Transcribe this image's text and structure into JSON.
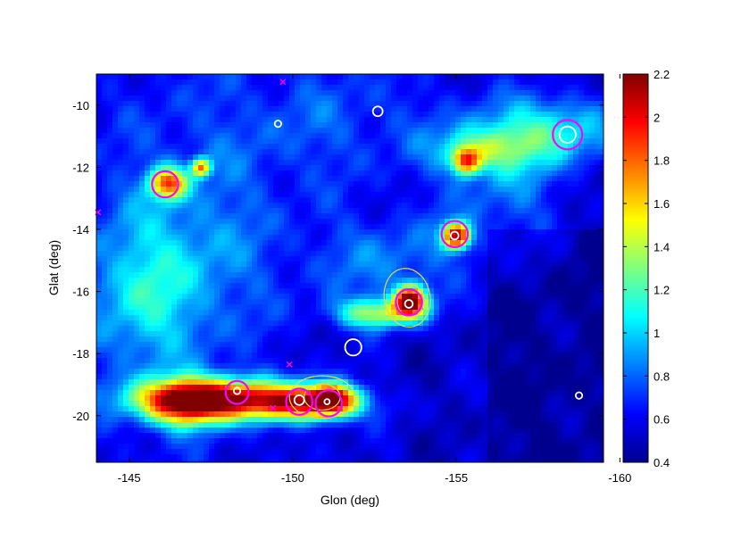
{
  "chart_data": {
    "type": "heatmap",
    "xlabel": "Glon (deg)",
    "ylabel": "Glat (deg)",
    "xlim": [
      -144,
      -159.5
    ],
    "ylim": [
      -21.5,
      -9
    ],
    "x_ticks": [
      {
        "value": -145,
        "label": "-145"
      },
      {
        "value": -150,
        "label": "-150"
      },
      {
        "value": -155,
        "label": "-155"
      },
      {
        "value": -160,
        "label": "-160"
      }
    ],
    "y_ticks": [
      {
        "value": -10,
        "label": "-10"
      },
      {
        "value": -12,
        "label": "-12"
      },
      {
        "value": -14,
        "label": "-14"
      },
      {
        "value": -16,
        "label": "-16"
      },
      {
        "value": -18,
        "label": "-18"
      },
      {
        "value": -20,
        "label": "-20"
      }
    ],
    "colorbar": {
      "range": [
        0.4,
        2.2
      ],
      "ticks": [
        {
          "value": 0.4,
          "label": "0.4"
        },
        {
          "value": 0.6,
          "label": "0.6"
        },
        {
          "value": 0.8,
          "label": "0.8"
        },
        {
          "value": 1.0,
          "label": "1"
        },
        {
          "value": 1.2,
          "label": "1.2"
        },
        {
          "value": 1.4,
          "label": "1.4"
        },
        {
          "value": 1.6,
          "label": "1.6"
        },
        {
          "value": 1.8,
          "label": "1.8"
        },
        {
          "value": 2.0,
          "label": "2"
        },
        {
          "value": 2.2,
          "label": "2.2"
        }
      ],
      "colormap": "jet"
    },
    "magenta_circles": [
      {
        "glon": -146.1,
        "glat": -12.55,
        "r": 0.4
      },
      {
        "glon": -148.3,
        "glat": -19.25,
        "r": 0.35
      },
      {
        "glon": -150.2,
        "glat": -19.55,
        "r": 0.4
      },
      {
        "glon": -151.1,
        "glat": -19.6,
        "r": 0.4
      },
      {
        "glon": -153.55,
        "glat": -16.35,
        "r": 0.4
      },
      {
        "glon": -154.95,
        "glat": -14.15,
        "r": 0.4
      },
      {
        "glon": -158.4,
        "glat": -10.95,
        "r": 0.45
      }
    ],
    "white_circles": [
      {
        "glon": -149.55,
        "glat": -10.6,
        "r": 0.1
      },
      {
        "glon": -152.6,
        "glat": -10.2,
        "r": 0.15
      },
      {
        "glon": -151.85,
        "glat": -17.8,
        "r": 0.25
      },
      {
        "glon": -158.4,
        "glat": -10.95,
        "r": 0.25
      },
      {
        "glon": -158.75,
        "glat": -19.35,
        "r": 0.1
      },
      {
        "glon": -148.3,
        "glat": -19.2,
        "r": 0.1
      },
      {
        "glon": -150.2,
        "glat": -19.5,
        "r": 0.15
      },
      {
        "glon": -151.05,
        "glat": -19.55,
        "r": 0.08
      },
      {
        "glon": -153.55,
        "glat": -16.4,
        "r": 0.12
      },
      {
        "glon": -154.95,
        "glat": -14.2,
        "r": 0.12
      }
    ],
    "magenta_crosses": [
      {
        "glon": -149.7,
        "glat": -9.25
      },
      {
        "glon": -144.05,
        "glat": -13.45
      },
      {
        "glon": -149.9,
        "glat": -18.35
      },
      {
        "glon": -149.4,
        "glat": -19.75
      }
    ],
    "emission_features": [
      {
        "glon": -147.6,
        "glat": -19.4,
        "sx": 1.6,
        "sy": 0.45,
        "amp": 1.3
      },
      {
        "glon": -146.8,
        "glat": -19.7,
        "sx": 1.0,
        "sy": 0.5,
        "amp": 0.9
      },
      {
        "glon": -150.3,
        "glat": -19.6,
        "sx": 1.2,
        "sy": 0.4,
        "amp": 1.1
      },
      {
        "glon": -151.2,
        "glat": -19.45,
        "sx": 0.5,
        "sy": 0.35,
        "amp": 1.2
      },
      {
        "glon": -146.2,
        "glat": -12.5,
        "sx": 0.4,
        "sy": 0.35,
        "amp": 1.1
      },
      {
        "glon": -147.2,
        "glat": -12.0,
        "sx": 0.2,
        "sy": 0.2,
        "amp": 1.0
      },
      {
        "glon": -153.6,
        "glat": -16.3,
        "sx": 0.35,
        "sy": 0.35,
        "amp": 1.6
      },
      {
        "glon": -152.6,
        "glat": -16.7,
        "sx": 0.9,
        "sy": 0.35,
        "amp": 0.8
      },
      {
        "glon": -155.0,
        "glat": -14.2,
        "sx": 0.3,
        "sy": 0.3,
        "amp": 1.5
      },
      {
        "glon": -155.3,
        "glat": -11.8,
        "sx": 0.3,
        "sy": 0.3,
        "amp": 1.0
      },
      {
        "glon": -155.8,
        "glat": -11.4,
        "sx": 1.0,
        "sy": 0.5,
        "amp": 0.5
      },
      {
        "glon": -158.0,
        "glat": -10.8,
        "sx": 1.4,
        "sy": 0.8,
        "amp": 0.55
      },
      {
        "glon": -145.4,
        "glat": -16.3,
        "sx": 1.4,
        "sy": 1.8,
        "amp": 0.35
      },
      {
        "glon": -147.0,
        "glat": -14.5,
        "sx": 2.0,
        "sy": 2.2,
        "amp": 0.25
      },
      {
        "glon": -153.0,
        "glat": -15.0,
        "sx": 1.6,
        "sy": 1.0,
        "amp": 0.3
      },
      {
        "glon": -151.5,
        "glat": -10.5,
        "sx": 3.0,
        "sy": 1.5,
        "amp": 0.2
      },
      {
        "glon": -156.5,
        "glat": -12.6,
        "sx": 1.4,
        "sy": 1.6,
        "amp": 0.3
      }
    ],
    "yellow_contours": [
      {
        "glon": -153.5,
        "glat": -16.2,
        "rx": 0.7,
        "ry": 0.9,
        "rot": -10
      },
      {
        "glon": -153.6,
        "glat": -16.3,
        "rx": 0.4,
        "ry": 0.5,
        "rot": 0
      },
      {
        "glon": -150.9,
        "glat": -19.4,
        "rx": 1.0,
        "ry": 0.65,
        "rot": 0
      },
      {
        "glon": -150.9,
        "glat": -19.4,
        "rx": 0.55,
        "ry": 0.4,
        "rot": 0
      }
    ]
  }
}
